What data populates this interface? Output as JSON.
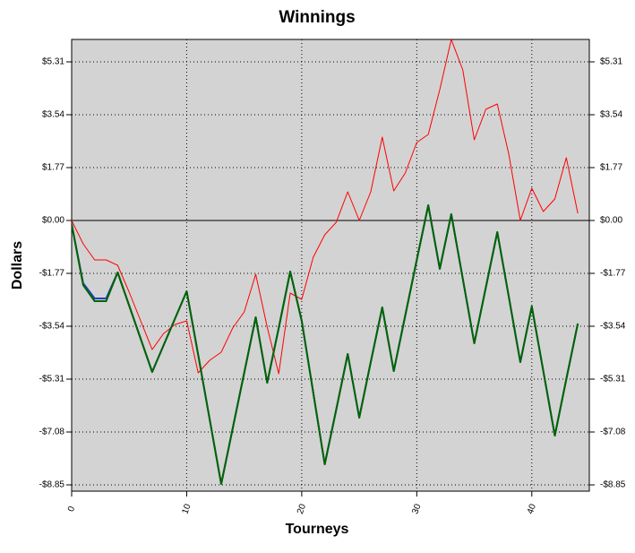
{
  "chart_data": {
    "type": "line",
    "title": "Winnings",
    "x_label": "Tourneys",
    "y_label": "Dollars",
    "x": [
      0,
      1,
      2,
      3,
      4,
      5,
      6,
      7,
      8,
      9,
      10,
      11,
      12,
      13,
      14,
      15,
      16,
      17,
      18,
      19,
      20,
      21,
      22,
      23,
      24,
      25,
      26,
      27,
      28,
      29,
      30,
      31,
      32,
      33,
      34,
      35,
      36,
      37,
      38,
      39,
      40,
      41,
      42,
      43,
      44
    ],
    "series": [
      {
        "color": "#ff0000",
        "values": [
          0,
          -0.78,
          -1.32,
          -1.32,
          -1.5,
          -2.4,
          -3.36,
          -4.32,
          -3.78,
          -3.48,
          -3.36,
          -5.1,
          -4.68,
          -4.41,
          -3.6,
          -3.06,
          -1.8,
          -3.57,
          -5.13,
          -2.43,
          -2.64,
          -1.23,
          -0.48,
          -0.06,
          0.96,
          0,
          0.96,
          2.79,
          0.99,
          1.59,
          2.61,
          2.88,
          4.38,
          6.06,
          5.04,
          2.7,
          3.72,
          3.9,
          2.22,
          0,
          1.08,
          0.3,
          0.72,
          2.1,
          0.24
        ]
      },
      {
        "color": "#1f3fbf",
        "values": [
          -0.12,
          -2.1,
          -2.61,
          -2.61,
          -1.74,
          -2.85,
          -3.96,
          -5.07,
          -4.17,
          -3.27,
          -2.37,
          -4.5,
          -6.66,
          -8.82,
          -6.96,
          -5.1,
          -3.24,
          -5.43,
          -3.6,
          -1.71,
          -3.36,
          -5.76,
          -8.16,
          -6.33,
          -4.47,
          -6.6,
          -4.74,
          -2.91,
          -5.04,
          -3.18,
          -1.32,
          0.51,
          -1.62,
          0.21,
          -1.95,
          -4.11,
          -2.25,
          -0.39,
          -2.55,
          -4.74,
          -2.88,
          -5.04,
          -7.2,
          -5.31,
          -3.45
        ]
      },
      {
        "color": "#006400",
        "values": [
          -0.12,
          -2.16,
          -2.7,
          -2.7,
          -1.74,
          -2.85,
          -3.96,
          -5.07,
          -4.17,
          -3.27,
          -2.37,
          -4.5,
          -6.66,
          -8.82,
          -6.96,
          -5.1,
          -3.24,
          -5.43,
          -3.6,
          -1.71,
          -3.36,
          -5.76,
          -8.16,
          -6.33,
          -4.47,
          -6.6,
          -4.74,
          -2.91,
          -5.04,
          -3.18,
          -1.32,
          0.51,
          -1.62,
          0.21,
          -1.95,
          -4.11,
          -2.25,
          -0.39,
          -2.55,
          -4.74,
          -2.88,
          -5.04,
          -7.2,
          -5.31,
          -3.45
        ]
      }
    ],
    "xlim": [
      0,
      45
    ],
    "xticks": [
      0,
      10,
      20,
      30,
      40
    ],
    "ylim": [
      -9.06,
      6.06
    ],
    "yticks": [
      {
        "value": -8.85,
        "label": "-$8.85"
      },
      {
        "value": -7.08,
        "label": "-$7.08"
      },
      {
        "value": -5.31,
        "label": "-$5.31"
      },
      {
        "value": -3.54,
        "label": "-$3.54"
      },
      {
        "value": -1.77,
        "label": "-$1.77"
      },
      {
        "value": 0,
        "label": "$0.00"
      },
      {
        "value": 1.77,
        "label": "$1.77"
      },
      {
        "value": 3.54,
        "label": "$3.54"
      },
      {
        "value": 5.31,
        "label": "$5.31"
      }
    ],
    "grid": true,
    "plot_background": "#d3d3d3"
  }
}
